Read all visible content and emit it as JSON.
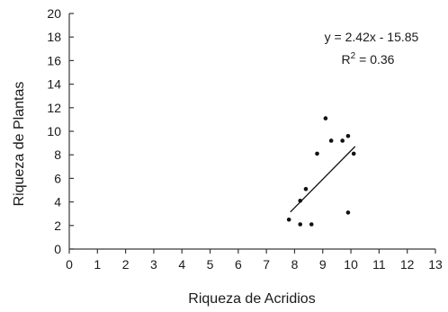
{
  "chart_data": {
    "type": "scatter",
    "title": "",
    "xlabel": "Riqueza de Acridios",
    "ylabel": "Riqueza de Plantas",
    "xlim": [
      0,
      13
    ],
    "ylim": [
      0,
      20
    ],
    "x_ticks": [
      0,
      1,
      2,
      3,
      4,
      5,
      6,
      7,
      8,
      9,
      10,
      11,
      12,
      13
    ],
    "y_ticks": [
      0,
      2,
      4,
      6,
      8,
      10,
      12,
      14,
      16,
      18,
      20
    ],
    "grid": false,
    "legend": "none",
    "points": [
      {
        "x": 7.8,
        "y": 2.5
      },
      {
        "x": 8.2,
        "y": 2.1
      },
      {
        "x": 8.2,
        "y": 4.1
      },
      {
        "x": 8.4,
        "y": 5.1
      },
      {
        "x": 8.6,
        "y": 2.1
      },
      {
        "x": 8.8,
        "y": 8.1
      },
      {
        "x": 9.1,
        "y": 11.1
      },
      {
        "x": 9.3,
        "y": 9.2
      },
      {
        "x": 9.7,
        "y": 9.2
      },
      {
        "x": 9.9,
        "y": 9.6
      },
      {
        "x": 9.9,
        "y": 3.1
      },
      {
        "x": 10.1,
        "y": 8.1
      }
    ],
    "trendline": {
      "slope": 2.42,
      "intercept": -15.85,
      "x_range": [
        7.85,
        10.15
      ],
      "equation_text": "y = 2.42x - 15.85",
      "r2_text": "R",
      "r2_sup": "2",
      "r2_value": " = 0.36"
    },
    "colors": {
      "points": "#111111",
      "axis": "#3a3a3a"
    }
  }
}
